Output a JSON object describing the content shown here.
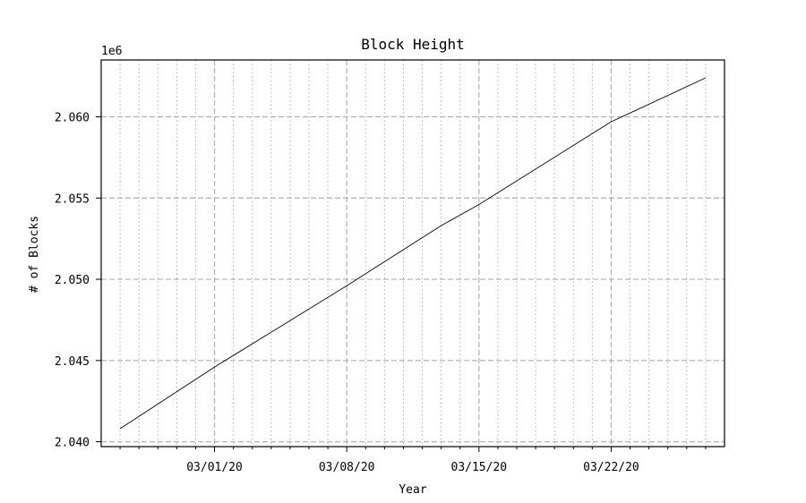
{
  "chart_data": {
    "type": "line",
    "title": "Block Height",
    "xlabel": "Year",
    "ylabel": "# of Blocks",
    "y_offset_label": "1e6",
    "x_range": [
      "2020-02-24",
      "2020-03-28"
    ],
    "ylim": [
      2.0397,
      2.0635
    ],
    "y_ticks": [
      2.04,
      2.045,
      2.05,
      2.055,
      2.06
    ],
    "y_tick_labels": [
      "2.040",
      "2.045",
      "2.050",
      "2.055",
      "2.060"
    ],
    "x_major_ticks": [
      "2020-03-01",
      "2020-03-08",
      "2020-03-15",
      "2020-03-22"
    ],
    "x_major_tick_labels": [
      "03/01/20",
      "03/08/20",
      "03/15/20",
      "03/22/20"
    ],
    "x_minor_tick_interval_days": 1,
    "grid": "major dashed, minor dotted",
    "line_color": "#000000",
    "series": [
      {
        "x": [
          "2020-02-25",
          "2020-03-01",
          "2020-03-08",
          "2020-03-13",
          "2020-03-15",
          "2020-03-22",
          "2020-03-27"
        ],
        "values": [
          2.0408,
          2.0446,
          2.0496,
          2.0533,
          2.0546,
          2.0597,
          2.0624
        ]
      }
    ]
  }
}
